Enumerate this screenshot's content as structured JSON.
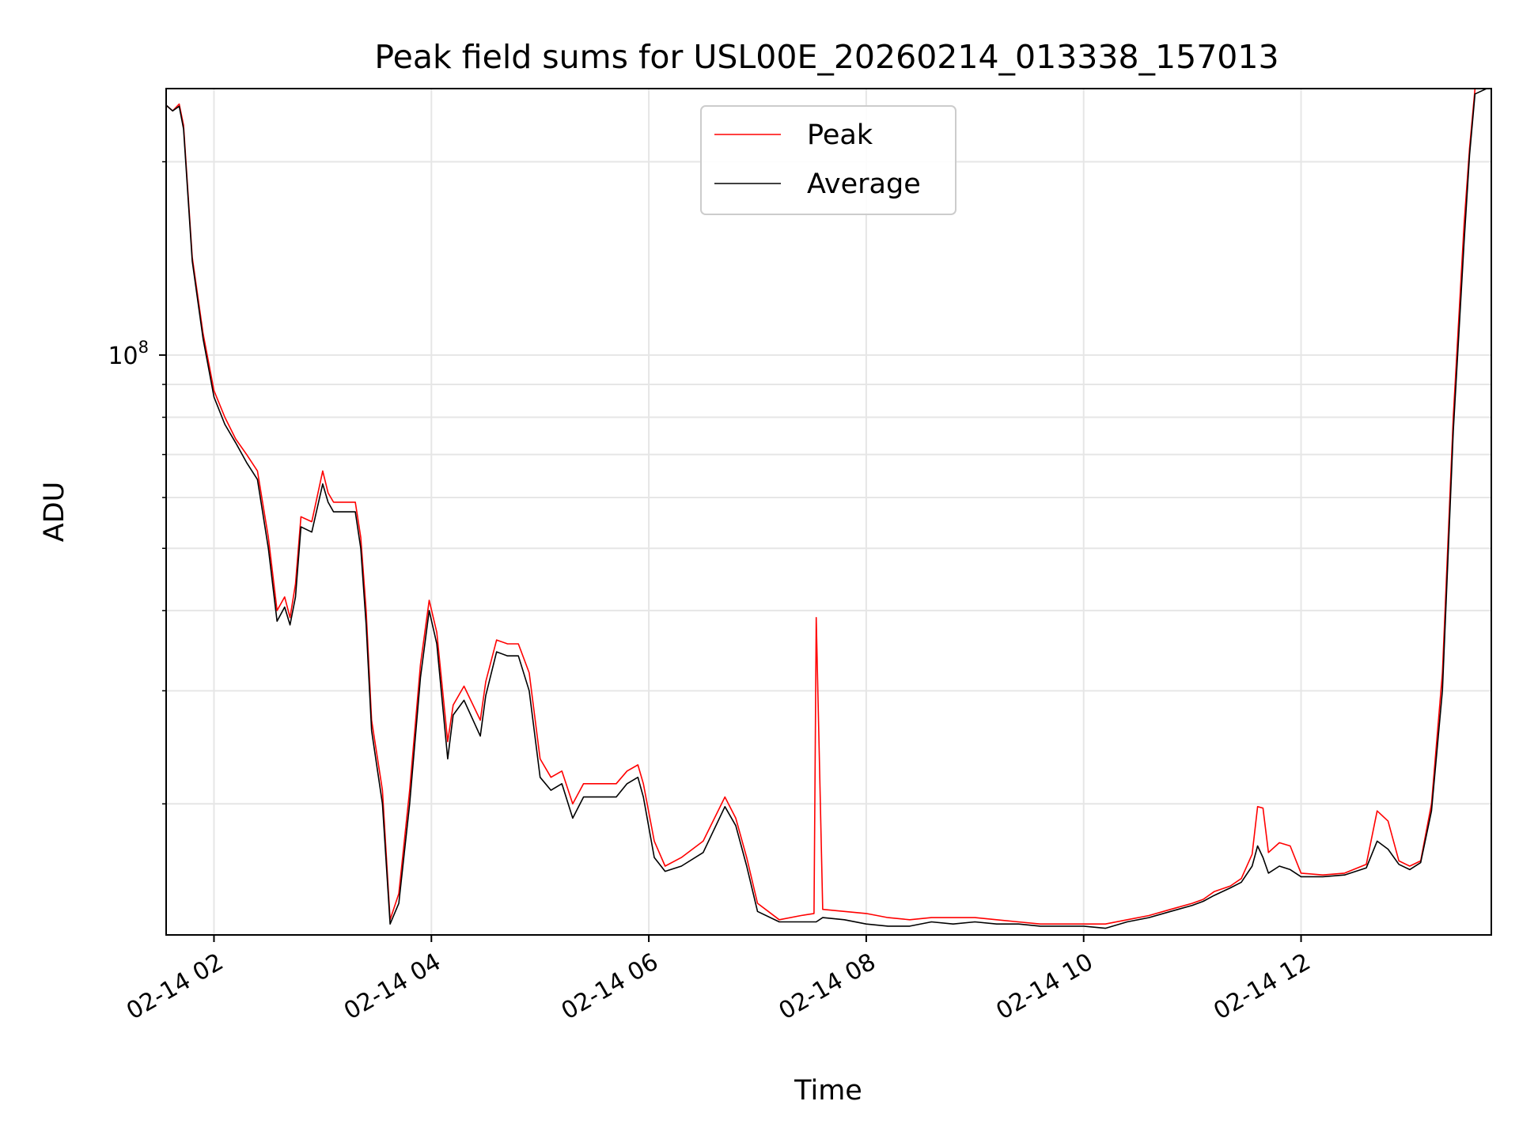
{
  "chart_data": {
    "type": "line",
    "title": "Peak field sums for USL00E_20260214_013338_157013",
    "xlabel": "Time",
    "ylabel": "ADU",
    "y_scale": "log",
    "xlim_hours": [
      1.56,
      13.75
    ],
    "ylim": [
      12500000,
      260000000
    ],
    "x_ticks": [
      {
        "value": 2,
        "label": "02-14 02"
      },
      {
        "value": 4,
        "label": "02-14 04"
      },
      {
        "value": 6,
        "label": "02-14 06"
      },
      {
        "value": 8,
        "label": "02-14 08"
      },
      {
        "value": 10,
        "label": "02-14 10"
      },
      {
        "value": 12,
        "label": "02-14 12"
      }
    ],
    "y_ticks": [
      {
        "value": 100000000,
        "base": "10",
        "exp": "8"
      }
    ],
    "y_minor_ticks": [
      20000000,
      30000000,
      40000000,
      50000000,
      60000000,
      70000000,
      80000000,
      90000000,
      200000000
    ],
    "grid": true,
    "legend_position": "top-center",
    "series": [
      {
        "name": "Peak",
        "color": "#ff0000",
        "x": [
          1.56,
          1.62,
          1.68,
          1.72,
          1.8,
          1.9,
          2.0,
          2.1,
          2.2,
          2.3,
          2.4,
          2.5,
          2.58,
          2.65,
          2.7,
          2.75,
          2.8,
          2.9,
          3.0,
          3.05,
          3.1,
          3.2,
          3.3,
          3.35,
          3.4,
          3.45,
          3.55,
          3.62,
          3.7,
          3.8,
          3.9,
          3.98,
          4.05,
          4.15,
          4.2,
          4.3,
          4.45,
          4.5,
          4.6,
          4.7,
          4.8,
          4.9,
          5.0,
          5.1,
          5.2,
          5.3,
          5.4,
          5.5,
          5.6,
          5.7,
          5.8,
          5.9,
          5.95,
          6.05,
          6.15,
          6.3,
          6.5,
          6.7,
          6.8,
          6.9,
          7.0,
          7.2,
          7.4,
          7.52,
          7.54,
          7.6,
          7.8,
          8.0,
          8.2,
          8.4,
          8.6,
          8.8,
          9.0,
          9.2,
          9.4,
          9.6,
          9.8,
          10.0,
          10.2,
          10.4,
          10.6,
          10.8,
          11.0,
          11.1,
          11.2,
          11.35,
          11.45,
          11.55,
          11.6,
          11.65,
          11.7,
          11.8,
          11.9,
          12.0,
          12.2,
          12.4,
          12.6,
          12.7,
          12.8,
          12.9,
          13.0,
          13.1,
          13.2,
          13.3,
          13.4,
          13.5,
          13.55,
          13.6,
          13.75
        ],
        "y": [
          245000000,
          240000000,
          246000000,
          228000000,
          142000000,
          108000000,
          88000000,
          80000000,
          74000000,
          70000000,
          66000000,
          52000000,
          40000000,
          42000000,
          39000000,
          44000000,
          56000000,
          55000000,
          66000000,
          61000000,
          59000000,
          59000000,
          59000000,
          52000000,
          40000000,
          27000000,
          21000000,
          13200000,
          14500000,
          21000000,
          33000000,
          41500000,
          37000000,
          25000000,
          28500000,
          30500000,
          27000000,
          31000000,
          36000000,
          35500000,
          35500000,
          32000000,
          23500000,
          22000000,
          22500000,
          20000000,
          21500000,
          21500000,
          21500000,
          21500000,
          22500000,
          23000000,
          21500000,
          17500000,
          16000000,
          16500000,
          17500000,
          20500000,
          19000000,
          16500000,
          14000000,
          13200000,
          13400000,
          13500000,
          39000000,
          13700000,
          13600000,
          13500000,
          13300000,
          13200000,
          13300000,
          13300000,
          13300000,
          13200000,
          13100000,
          13000000,
          13000000,
          13000000,
          13000000,
          13200000,
          13400000,
          13700000,
          14000000,
          14200000,
          14600000,
          14900000,
          15300000,
          16700000,
          19800000,
          19700000,
          16800000,
          17400000,
          17200000,
          15600000,
          15500000,
          15600000,
          16100000,
          19500000,
          18800000,
          16300000,
          16000000,
          16300000,
          20000000,
          32000000,
          80000000,
          160000000,
          210000000,
          260000000,
          265000000
        ]
      },
      {
        "name": "Average",
        "color": "#000000",
        "x": [
          1.56,
          1.62,
          1.68,
          1.72,
          1.8,
          1.9,
          2.0,
          2.1,
          2.2,
          2.3,
          2.4,
          2.5,
          2.58,
          2.65,
          2.7,
          2.75,
          2.8,
          2.9,
          3.0,
          3.05,
          3.1,
          3.2,
          3.3,
          3.35,
          3.4,
          3.45,
          3.55,
          3.62,
          3.7,
          3.8,
          3.9,
          3.98,
          4.05,
          4.15,
          4.2,
          4.3,
          4.45,
          4.5,
          4.6,
          4.7,
          4.8,
          4.9,
          5.0,
          5.1,
          5.2,
          5.3,
          5.4,
          5.5,
          5.6,
          5.7,
          5.8,
          5.9,
          5.95,
          6.05,
          6.15,
          6.3,
          6.5,
          6.7,
          6.8,
          6.9,
          7.0,
          7.2,
          7.4,
          7.52,
          7.54,
          7.6,
          7.8,
          8.0,
          8.2,
          8.4,
          8.6,
          8.8,
          9.0,
          9.2,
          9.4,
          9.6,
          9.8,
          10.0,
          10.2,
          10.4,
          10.6,
          10.8,
          11.0,
          11.1,
          11.2,
          11.35,
          11.45,
          11.55,
          11.6,
          11.65,
          11.7,
          11.8,
          11.9,
          12.0,
          12.2,
          12.4,
          12.6,
          12.7,
          12.8,
          12.9,
          13.0,
          13.1,
          13.2,
          13.3,
          13.4,
          13.5,
          13.55,
          13.6,
          13.75
        ],
        "y": [
          245000000,
          240000000,
          244000000,
          225000000,
          140000000,
          106000000,
          86000000,
          78000000,
          73000000,
          68000000,
          64000000,
          50000000,
          38500000,
          40500000,
          38000000,
          42000000,
          54000000,
          53000000,
          63000000,
          59000000,
          57000000,
          57000000,
          57000000,
          50000000,
          38000000,
          26000000,
          20000000,
          13000000,
          14000000,
          20000000,
          31500000,
          40000000,
          35500000,
          23500000,
          27500000,
          29000000,
          25500000,
          29500000,
          34500000,
          34000000,
          34000000,
          30000000,
          22000000,
          21000000,
          21500000,
          19000000,
          20500000,
          20500000,
          20500000,
          20500000,
          21500000,
          22000000,
          20500000,
          16500000,
          15700000,
          16000000,
          16800000,
          19800000,
          18500000,
          16000000,
          13600000,
          13100000,
          13100000,
          13100000,
          13100000,
          13300000,
          13200000,
          13000000,
          12900000,
          12900000,
          13100000,
          13000000,
          13100000,
          13000000,
          13000000,
          12900000,
          12900000,
          12900000,
          12800000,
          13100000,
          13300000,
          13600000,
          13900000,
          14100000,
          14400000,
          14800000,
          15100000,
          16000000,
          17200000,
          16500000,
          15600000,
          16000000,
          15800000,
          15400000,
          15400000,
          15500000,
          15900000,
          17500000,
          17000000,
          16100000,
          15800000,
          16200000,
          19500000,
          30000000,
          76000000,
          150000000,
          205000000,
          255000000,
          262000000
        ]
      }
    ]
  }
}
